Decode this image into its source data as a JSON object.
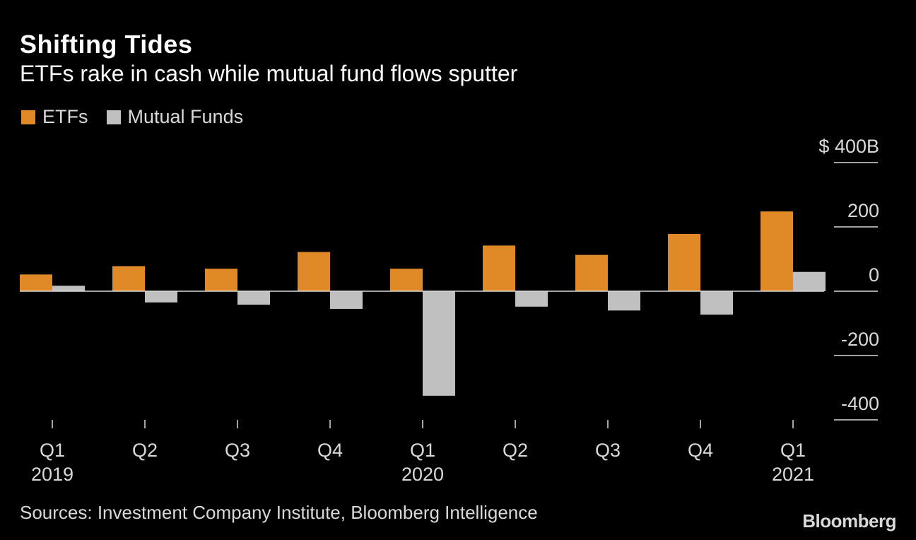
{
  "chart_data": {
    "type": "bar",
    "title": "Shifting Tides",
    "subtitle": "ETFs rake in cash while mutual fund flows sputter",
    "categories": [
      "Q1 2019",
      "Q2 2019",
      "Q3 2019",
      "Q4 2019",
      "Q1 2020",
      "Q2 2020",
      "Q3 2020",
      "Q4 2020",
      "Q1 2021"
    ],
    "x_tick_labels": [
      {
        "quarter": "Q1",
        "year": "2019"
      },
      {
        "quarter": "Q2",
        "year": ""
      },
      {
        "quarter": "Q3",
        "year": ""
      },
      {
        "quarter": "Q4",
        "year": ""
      },
      {
        "quarter": "Q1",
        "year": "2020"
      },
      {
        "quarter": "Q2",
        "year": ""
      },
      {
        "quarter": "Q3",
        "year": ""
      },
      {
        "quarter": "Q4",
        "year": ""
      },
      {
        "quarter": "Q1",
        "year": "2021"
      }
    ],
    "series": [
      {
        "name": "ETFs",
        "color": "#e08a27",
        "values": [
          52,
          78,
          70,
          122,
          70,
          142,
          113,
          178,
          248
        ]
      },
      {
        "name": "Mutual Funds",
        "color": "#c0c0c0",
        "values": [
          17,
          -35,
          -42,
          -55,
          -325,
          -48,
          -60,
          -73,
          60
        ]
      }
    ],
    "ylim": [
      -400,
      400
    ],
    "y_ticks": [
      {
        "value": 400,
        "label": "$ 400B"
      },
      {
        "value": 200,
        "label": "200"
      },
      {
        "value": 0,
        "label": "0"
      },
      {
        "value": -200,
        "label": "-200"
      },
      {
        "value": -400,
        "label": "-400"
      }
    ],
    "xlabel": "",
    "ylabel": "",
    "legend_position": "top-left",
    "grid": false
  },
  "source": "Sources: Investment Company Institute, Bloomberg Intelligence",
  "brand": "Bloomberg"
}
